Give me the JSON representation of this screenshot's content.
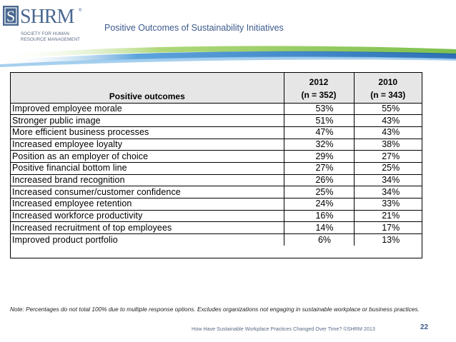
{
  "logo": {
    "wordmark": "SHRM",
    "registered": "®",
    "sub_line1": "SOCIETY FOR HUMAN",
    "sub_line2": "RESOURCE MANAGEMENT"
  },
  "slide": {
    "title": "Positive Outcomes of Sustainability Initiatives"
  },
  "table": {
    "header": {
      "label": "Positive outcomes",
      "col1_year": "2012",
      "col1_n": "(n = 352)",
      "col2_year": "2010",
      "col2_n": "(n = 343)"
    },
    "rows": [
      {
        "label": "Improved employee morale",
        "v2012": "53%",
        "v2010": "55%"
      },
      {
        "label": "Stronger public image",
        "v2012": "51%",
        "v2010": "43%"
      },
      {
        "label": "More efficient business processes",
        "v2012": "47%",
        "v2010": "43%"
      },
      {
        "label": "Increased employee loyalty",
        "v2012": "32%",
        "v2010": "38%"
      },
      {
        "label": "Position as an employer of choice",
        "v2012": "29%",
        "v2010": "27%"
      },
      {
        "label": "Positive financial bottom line",
        "v2012": "27%",
        "v2010": "25%"
      },
      {
        "label": "Increased brand recognition",
        "v2012": "26%",
        "v2010": "34%"
      },
      {
        "label": "Increased consumer/customer confidence",
        "v2012": "25%",
        "v2010": "34%"
      },
      {
        "label": "Increased employee retention",
        "v2012": "24%",
        "v2010": "33%"
      },
      {
        "label": "Increased workforce productivity",
        "v2012": "16%",
        "v2010": "21%"
      },
      {
        "label": "Increased recruitment of top employees",
        "v2012": "14%",
        "v2010": "17%"
      },
      {
        "label": "Improved product portfolio",
        "v2012": "6%",
        "v2010": "13%"
      }
    ]
  },
  "note": "Note: Percentages do not total 100% due to multiple response options. Excludes organizations not engaging in sustainable workplace or business practices.",
  "footer": {
    "source": "How Have Sustainable Workplace Practices Changed Over Time? ©SHRM 2013",
    "page_number": "22"
  },
  "colors": {
    "brand_blue": "#3c5a8c",
    "swoosh_green": "#8dc63f",
    "swoosh_blue": "#1f78c8"
  }
}
